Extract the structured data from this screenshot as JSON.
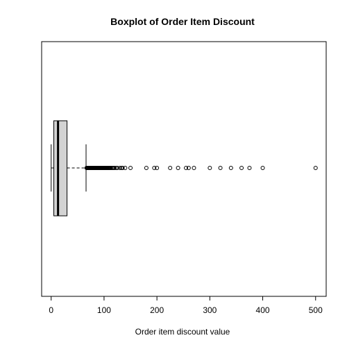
{
  "chart_data": {
    "type": "boxplot",
    "orientation": "horizontal",
    "title": "Boxplot of Order Item Discount",
    "xlabel": "Order item discount value",
    "ylabel": "",
    "xlim": [
      -18,
      520
    ],
    "xticks": [
      0,
      100,
      200,
      300,
      400,
      500
    ],
    "xtick_labels": [
      "0",
      "100",
      "200",
      "300",
      "400",
      "500"
    ],
    "stats": {
      "whisker_low": 0,
      "q1": 5,
      "median": 13,
      "q3": 30,
      "whisker_high": 66
    },
    "outliers": [
      67,
      68,
      69,
      70,
      71,
      72,
      73,
      74,
      75,
      76,
      77,
      78,
      79,
      80,
      81,
      82,
      83,
      84,
      85,
      86,
      87,
      88,
      89,
      90,
      91,
      92,
      93,
      94,
      95,
      96,
      97,
      98,
      99,
      100,
      101,
      102,
      103,
      104,
      105,
      106,
      107,
      108,
      109,
      110,
      111,
      112,
      114,
      116,
      118,
      120,
      123,
      125,
      130,
      133,
      135,
      140,
      150,
      180,
      195,
      200,
      225,
      240,
      255,
      260,
      270,
      300,
      320,
      340,
      360,
      375,
      400,
      500
    ],
    "colors": {
      "box_fill": "#d3d3d3",
      "stroke": "#000000",
      "background": "#ffffff"
    }
  }
}
